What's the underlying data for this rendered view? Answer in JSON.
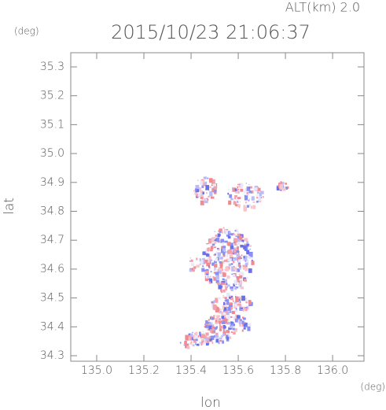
{
  "chart_data": {
    "type": "map",
    "title": "2015/10/23 21:06:37",
    "subtitle": "ALT(km) 2.0",
    "xlabel": "lon",
    "ylabel": "lat",
    "xunit": "(deg)",
    "yunit": "(deg)",
    "xlim": [
      134.89,
      136.133
    ],
    "ylim": [
      34.281,
      35.349
    ],
    "xticks": [
      {
        "value": 135.0,
        "label": "135.0"
      },
      135.2,
      135.4,
      135.6,
      135.8,
      {
        "value": 136.0,
        "label": "136.0"
      }
    ],
    "yticks": [
      34.3,
      34.4,
      34.5,
      34.6,
      34.7,
      34.8,
      34.9,
      {
        "value": 35.0,
        "label": "35.0"
      },
      35.1,
      35.2,
      35.3
    ]
  }
}
